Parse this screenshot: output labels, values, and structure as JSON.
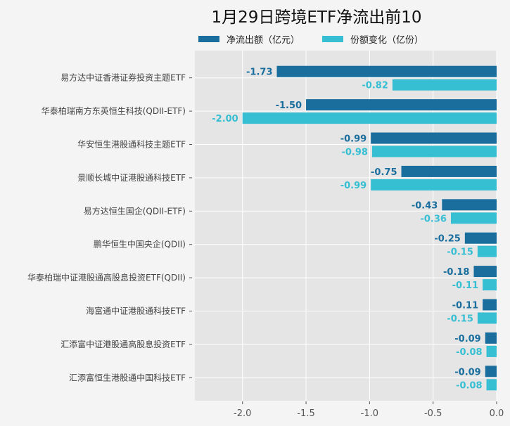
{
  "chart_data": {
    "type": "bar",
    "orientation": "horizontal",
    "title": "1月29日跨境ETF净流出前10",
    "categories": [
      "易方达中证香港证券投资主题ETF",
      "华泰柏瑞南方东英恒生科技(QDII-ETF)",
      "华安恒生港股通科技主题ETF",
      "景顺长城中证港股通科技ETF",
      "易方达恒生国企(QDII-ETF)",
      "鹏华恒生中国央企(QDII)",
      "华泰柏瑞中证港股通高股息投资ETF(QDII)",
      "海富通中证港股通科技ETF",
      "汇添富中证港股通高股息投资ETF",
      "汇添富恒生港股通中国科技ETF"
    ],
    "series": [
      {
        "name": "净流出额（亿元）",
        "color": "#1a6e9e",
        "values": [
          -1.73,
          -1.5,
          -0.99,
          -0.75,
          -0.43,
          -0.25,
          -0.18,
          -0.11,
          -0.09,
          -0.09
        ]
      },
      {
        "name": "份额变化（亿份）",
        "color": "#36bfd3",
        "values": [
          -0.82,
          -2.0,
          -0.98,
          -0.99,
          -0.36,
          -0.15,
          -0.11,
          -0.15,
          -0.08,
          -0.08
        ]
      }
    ],
    "xlim": [
      -2.375,
      0
    ],
    "xticks": [
      "-2.0",
      "-1.5",
      "-1.0",
      "-0.5",
      "0.0"
    ],
    "xtick_values": [
      -2.0,
      -1.5,
      -1.0,
      -0.5,
      0.0
    ],
    "grid": true,
    "legend": "top"
  }
}
